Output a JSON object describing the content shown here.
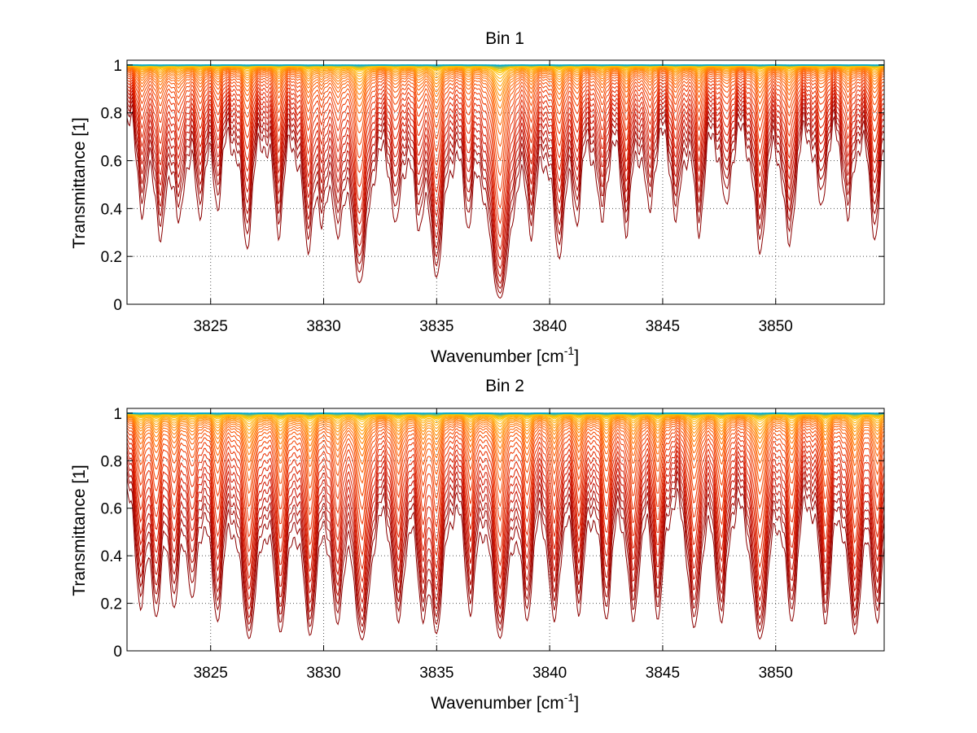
{
  "chart_data": [
    {
      "type": "line",
      "title": "Bin 1",
      "xlabel": "Wavenumber [cm",
      "xlabel_sup": "-1",
      "xlabel_end": "]",
      "ylabel": "Transmittance [1]",
      "xlim": [
        3821.3,
        3854.8
      ],
      "ylim": [
        0,
        1.02
      ],
      "xticks": [
        3825,
        3830,
        3835,
        3840,
        3845,
        3850
      ],
      "xtick_labels": [
        "3825",
        "3830",
        "3835",
        "3840",
        "3845",
        "3850"
      ],
      "yticks": [
        0,
        0.2,
        0.4,
        0.6,
        0.8,
        1
      ],
      "ytick_labels": [
        "0",
        "0.2",
        "0.4",
        "0.6",
        "0.8",
        "1"
      ],
      "grid": "dotted",
      "colormap": [
        "#8b0000",
        "#cc1100",
        "#ee3300",
        "#ff6600",
        "#ff9900",
        "#ffcc00",
        "#00aacc"
      ],
      "line_levels": [
        0.005,
        0.012,
        0.02,
        0.03,
        0.045,
        0.065,
        0.09,
        0.12,
        0.16,
        0.21,
        0.27,
        0.34,
        0.41,
        0.48,
        0.55,
        0.61,
        0.66,
        0.71,
        0.75,
        0.79,
        0.82,
        0.85,
        0.875,
        0.9,
        0.92,
        0.94,
        0.955,
        0.967,
        0.977,
        0.985,
        0.991,
        0.995,
        0.998
      ],
      "absorption_lines": [
        {
          "x": 3822.0,
          "depth": 0.12,
          "width": 0.22
        },
        {
          "x": 3822.8,
          "depth": 0.18,
          "width": 0.2
        },
        {
          "x": 3823.6,
          "depth": 0.14,
          "width": 0.2
        },
        {
          "x": 3824.5,
          "depth": 0.12,
          "width": 0.2
        },
        {
          "x": 3825.3,
          "depth": 0.1,
          "width": 0.2
        },
        {
          "x": 3826.6,
          "depth": 0.2,
          "width": 0.22
        },
        {
          "x": 3828.0,
          "depth": 0.16,
          "width": 0.2
        },
        {
          "x": 3829.3,
          "depth": 0.2,
          "width": 0.2
        },
        {
          "x": 3829.9,
          "depth": 0.12,
          "width": 0.18
        },
        {
          "x": 3830.6,
          "depth": 0.15,
          "width": 0.2
        },
        {
          "x": 3831.6,
          "depth": 0.35,
          "width": 0.28
        },
        {
          "x": 3833.2,
          "depth": 0.14,
          "width": 0.2
        },
        {
          "x": 3834.2,
          "depth": 0.12,
          "width": 0.2
        },
        {
          "x": 3835.0,
          "depth": 0.3,
          "width": 0.25
        },
        {
          "x": 3836.4,
          "depth": 0.12,
          "width": 0.2
        },
        {
          "x": 3837.8,
          "depth": 0.55,
          "width": 0.3
        },
        {
          "x": 3839.2,
          "depth": 0.14,
          "width": 0.2
        },
        {
          "x": 3840.4,
          "depth": 0.22,
          "width": 0.22
        },
        {
          "x": 3841.2,
          "depth": 0.12,
          "width": 0.2
        },
        {
          "x": 3842.3,
          "depth": 0.14,
          "width": 0.2
        },
        {
          "x": 3843.4,
          "depth": 0.16,
          "width": 0.2
        },
        {
          "x": 3844.4,
          "depth": 0.12,
          "width": 0.2
        },
        {
          "x": 3845.6,
          "depth": 0.14,
          "width": 0.2
        },
        {
          "x": 3846.6,
          "depth": 0.16,
          "width": 0.2
        },
        {
          "x": 3847.8,
          "depth": 0.12,
          "width": 0.2
        },
        {
          "x": 3849.3,
          "depth": 0.22,
          "width": 0.22
        },
        {
          "x": 3850.6,
          "depth": 0.2,
          "width": 0.22
        },
        {
          "x": 3852.0,
          "depth": 0.12,
          "width": 0.2
        },
        {
          "x": 3853.2,
          "depth": 0.14,
          "width": 0.2
        },
        {
          "x": 3854.4,
          "depth": 0.18,
          "width": 0.22
        }
      ]
    },
    {
      "type": "line",
      "title": "Bin 2",
      "xlabel": "Wavenumber [cm",
      "xlabel_sup": "-1",
      "xlabel_end": "]",
      "ylabel": "Transmittance [1]",
      "xlim": [
        3821.3,
        3854.8
      ],
      "ylim": [
        0,
        1.02
      ],
      "xticks": [
        3825,
        3830,
        3835,
        3840,
        3845,
        3850
      ],
      "xtick_labels": [
        "3825",
        "3830",
        "3835",
        "3840",
        "3845",
        "3850"
      ],
      "yticks": [
        0,
        0.2,
        0.4,
        0.6,
        0.8,
        1
      ],
      "ytick_labels": [
        "0",
        "0.2",
        "0.4",
        "0.6",
        "0.8",
        "1"
      ],
      "grid": "dotted",
      "colormap": [
        "#8b0000",
        "#cc1100",
        "#ee3300",
        "#ff6600",
        "#ff9900",
        "#ffcc00",
        "#00aacc"
      ],
      "line_levels": [
        0.005,
        0.012,
        0.02,
        0.03,
        0.045,
        0.065,
        0.09,
        0.12,
        0.16,
        0.21,
        0.27,
        0.34,
        0.41,
        0.48,
        0.55,
        0.61,
        0.66,
        0.71,
        0.75,
        0.79,
        0.82,
        0.85,
        0.875,
        0.9,
        0.92,
        0.94,
        0.955,
        0.967,
        0.977,
        0.985,
        0.991,
        0.995,
        0.998
      ],
      "absorption_lines": [
        {
          "x": 3821.9,
          "depth": 0.22,
          "width": 0.22
        },
        {
          "x": 3822.6,
          "depth": 0.25,
          "width": 0.2
        },
        {
          "x": 3823.4,
          "depth": 0.22,
          "width": 0.2
        },
        {
          "x": 3824.2,
          "depth": 0.2,
          "width": 0.2
        },
        {
          "x": 3825.3,
          "depth": 0.28,
          "width": 0.22
        },
        {
          "x": 3826.7,
          "depth": 0.42,
          "width": 0.25
        },
        {
          "x": 3828.1,
          "depth": 0.35,
          "width": 0.22
        },
        {
          "x": 3829.4,
          "depth": 0.38,
          "width": 0.22
        },
        {
          "x": 3830.6,
          "depth": 0.3,
          "width": 0.2
        },
        {
          "x": 3831.7,
          "depth": 0.45,
          "width": 0.25
        },
        {
          "x": 3833.3,
          "depth": 0.3,
          "width": 0.2
        },
        {
          "x": 3834.4,
          "depth": 0.25,
          "width": 0.2
        },
        {
          "x": 3835.0,
          "depth": 0.35,
          "width": 0.22
        },
        {
          "x": 3836.5,
          "depth": 0.25,
          "width": 0.2
        },
        {
          "x": 3837.8,
          "depth": 0.42,
          "width": 0.25
        },
        {
          "x": 3839.0,
          "depth": 0.28,
          "width": 0.2
        },
        {
          "x": 3840.2,
          "depth": 0.3,
          "width": 0.2
        },
        {
          "x": 3841.3,
          "depth": 0.25,
          "width": 0.2
        },
        {
          "x": 3842.5,
          "depth": 0.28,
          "width": 0.2
        },
        {
          "x": 3843.7,
          "depth": 0.3,
          "width": 0.2
        },
        {
          "x": 3844.8,
          "depth": 0.28,
          "width": 0.2
        },
        {
          "x": 3846.4,
          "depth": 0.35,
          "width": 0.22
        },
        {
          "x": 3847.6,
          "depth": 0.3,
          "width": 0.2
        },
        {
          "x": 3849.3,
          "depth": 0.45,
          "width": 0.25
        },
        {
          "x": 3850.7,
          "depth": 0.3,
          "width": 0.2
        },
        {
          "x": 3852.2,
          "depth": 0.3,
          "width": 0.2
        },
        {
          "x": 3853.5,
          "depth": 0.38,
          "width": 0.22
        },
        {
          "x": 3854.5,
          "depth": 0.3,
          "width": 0.2
        }
      ]
    }
  ]
}
